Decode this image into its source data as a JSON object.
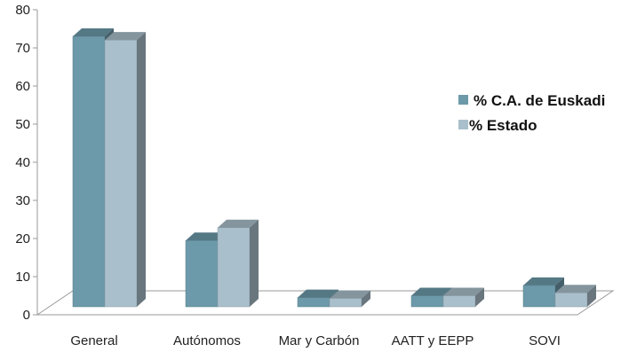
{
  "chart_data": {
    "type": "bar",
    "categories": [
      "General",
      "Autónomos",
      "Mar y Carbón",
      "AATT y EEPP",
      "SOVI"
    ],
    "series": [
      {
        "name": "% C.A. de Euskadi",
        "values": [
          73.5,
          18.0,
          2.5,
          3.0,
          5.8
        ],
        "color": "#6d9aaa"
      },
      {
        "name": "% Estado",
        "values": [
          72.5,
          21.5,
          2.3,
          3.0,
          3.8
        ],
        "color": "#a9bfcb"
      }
    ],
    "yticks": [
      0,
      10,
      20,
      30,
      40,
      50,
      60,
      70,
      80
    ],
    "ylim": [
      0,
      80
    ],
    "legend_position": "right",
    "grid": false,
    "style": "3d-clustered-column"
  }
}
